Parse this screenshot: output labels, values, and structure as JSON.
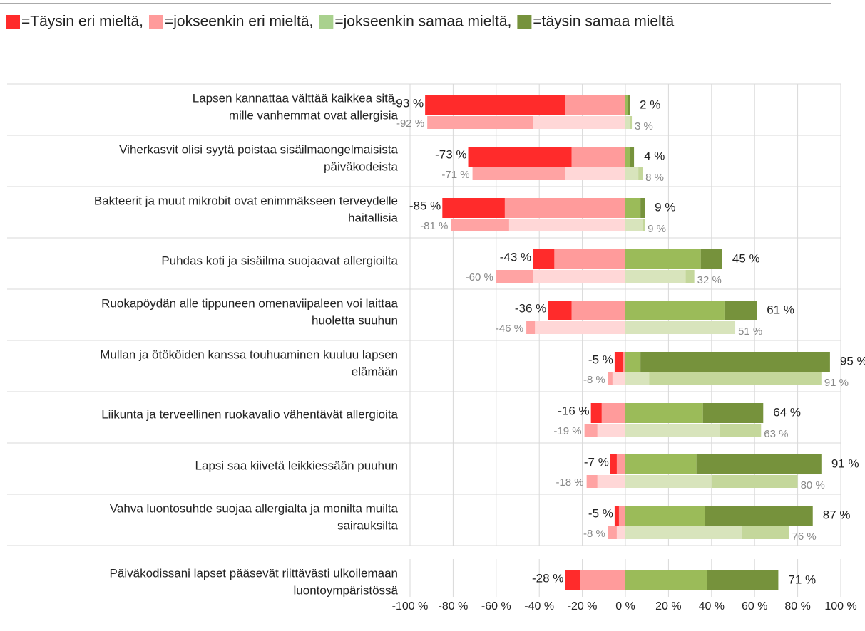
{
  "chart_data": {
    "type": "diverging_bar",
    "legend": [
      "=Täysin eri mieltä,",
      "=jokseenkin eri mieltä,",
      "=jokseenkin samaa mieltä,",
      "=täysin samaa mieltä"
    ],
    "categories": [
      [
        "Lapsen kannattaa välttää kaikkea sitä,",
        "mille vanhemmat ovat allergisia"
      ],
      [
        "Viherkasvit olisi syytä poistaa sisäilmaongelmaisista",
        "päiväkodeista"
      ],
      [
        "Bakteerit ja muut mikrobit ovat enimmäkseen terveydelle",
        "haitallisia"
      ],
      [
        "Puhdas koti ja sisäilma suojaavat allergioilta"
      ],
      [
        "Ruokapöydän alle tippuneen omenaviipaleen voi laittaa",
        "huoletta suuhun"
      ],
      [
        "Mullan ja ötököiden kanssa touhuaminen kuuluu lapsen",
        "elämään"
      ],
      [
        "Liikunta ja terveellinen ruokavalio vähentävät allergioita"
      ],
      [
        "Lapsi saa kiivetä leikkiessään puuhun"
      ],
      [
        "Vahva luontosuhde suojaa allergialta ja monilta muilta",
        "sairauksilta"
      ],
      [
        "Päiväkodissani lapset pääsevät riittävästi ulkoilemaan",
        "luontoympäristössä"
      ]
    ],
    "series": [
      {
        "name": "=Täysin eri mieltä,",
        "color": "#ff2b2b",
        "prev_color": "#ffa3a3",
        "side": "neg",
        "values": [
          65,
          48,
          29,
          10,
          11,
          4,
          5,
          3,
          2,
          7
        ],
        "prev_values": [
          49,
          43,
          27,
          17,
          4,
          2,
          6,
          5,
          4,
          null
        ]
      },
      {
        "name": "=jokseenkin eri mieltä,",
        "color": "#ff9b9b",
        "prev_color": "#ffd7d7",
        "side": "neg",
        "values": [
          28,
          25,
          56,
          33,
          25,
          1,
          11,
          4,
          3,
          21
        ],
        "prev_values": [
          43,
          28,
          54,
          43,
          42,
          6,
          13,
          13,
          4,
          null
        ]
      },
      {
        "name": "=jokseenkin samaa mieltä,",
        "color": "#9bbb59",
        "legend_color": "#a9d18e",
        "prev_color": "#d8e4bc",
        "side": "pos",
        "values": [
          1,
          2,
          7,
          35,
          46,
          7,
          36,
          33,
          37,
          38
        ],
        "prev_values": [
          2,
          6,
          8,
          28,
          51,
          11,
          44,
          40,
          54,
          null
        ]
      },
      {
        "name": "=täysin samaa mieltä",
        "color": "#76923c",
        "prev_color": "#c4d79b",
        "side": "pos",
        "values": [
          1,
          2,
          2,
          10,
          15,
          88,
          28,
          58,
          50,
          33
        ],
        "prev_values": [
          1,
          2,
          1,
          4,
          0,
          80,
          19,
          40,
          22,
          null
        ]
      }
    ],
    "neg_totals": [
      -93,
      -73,
      -85,
      -43,
      -36,
      -5,
      -16,
      -7,
      -5,
      -28
    ],
    "neg_total_labels": [
      "-93 %",
      "-73 %",
      "-85 %",
      "-43 %",
      "-36 %",
      "-5 %",
      "-16 %",
      "-7 %",
      "-5 %",
      "-28 %"
    ],
    "pos_totals": [
      2,
      4,
      9,
      45,
      61,
      95,
      64,
      91,
      87,
      71
    ],
    "pos_total_labels": [
      "2 %",
      "4 %",
      "9 %",
      "45 %",
      "61 %",
      "95 %",
      "64 %",
      "91 %",
      "87 %",
      "71 %"
    ],
    "prev_neg_totals": [
      -92,
      -71,
      -81,
      -60,
      -46,
      -8,
      -19,
      -18,
      -8,
      null
    ],
    "prev_neg_total_labels": [
      "-92 %",
      "-71 %",
      "-81 %",
      "-60 %",
      "-46 %",
      "-8 %",
      "-19 %",
      "-18 %",
      "-8 %",
      null
    ],
    "prev_pos_totals": [
      3,
      8,
      9,
      32,
      51,
      91,
      63,
      80,
      76,
      null
    ],
    "prev_pos_total_labels": [
      "3 %",
      "8 %",
      "9 %",
      "32 %",
      "51 %",
      "91 %",
      "63 %",
      "80 %",
      "76 %",
      null
    ],
    "xlim": [
      -100,
      100
    ],
    "xticks": [
      {
        "value": -100,
        "label": "-100 %"
      },
      {
        "value": -80,
        "label": "-80 %"
      },
      {
        "value": -60,
        "label": "-60 %"
      },
      {
        "value": -40,
        "label": "-40 %"
      },
      {
        "value": -20,
        "label": "-20 %"
      },
      {
        "value": 0,
        "label": "0 %"
      },
      {
        "value": 20,
        "label": "20 %"
      },
      {
        "value": 40,
        "label": "40 %"
      },
      {
        "value": 60,
        "label": "60 %"
      },
      {
        "value": 80,
        "label": "80 %"
      },
      {
        "value": 100,
        "label": "100 %"
      }
    ],
    "grid": true
  }
}
